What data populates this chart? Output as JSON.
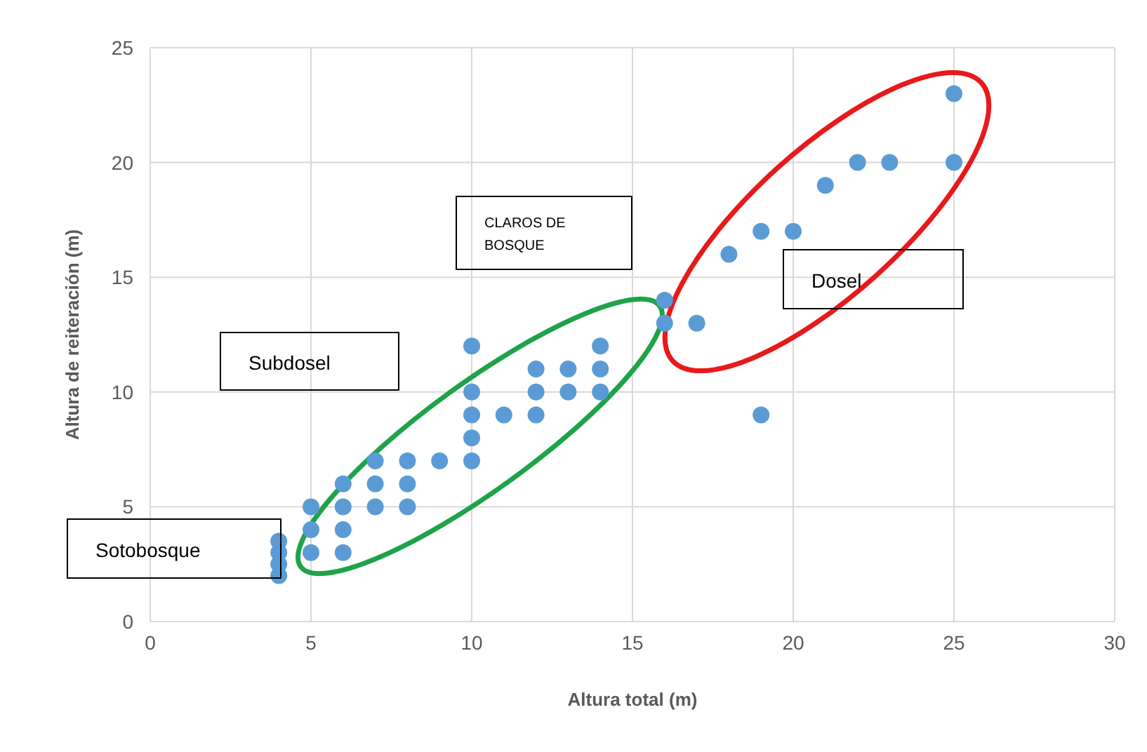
{
  "chart_data": {
    "type": "scatter",
    "xlabel": "Altura total (m)",
    "ylabel": "Altura de reiteración (m)",
    "x": [
      4,
      4,
      4,
      4,
      5,
      5,
      5,
      6,
      6,
      6,
      6,
      7,
      7,
      7,
      8,
      8,
      8,
      9,
      10,
      10,
      10,
      10,
      10,
      11,
      12,
      12,
      12,
      13,
      13,
      14,
      14,
      14,
      16,
      16,
      17,
      18,
      19,
      19,
      20,
      21,
      22,
      23,
      25,
      25
    ],
    "series": [
      {
        "color": "#5b9bd5",
        "values": [
          2,
          2.5,
          3,
          3.5,
          3,
          4,
          5,
          3,
          4,
          5,
          6,
          5,
          6,
          7,
          5,
          6,
          7,
          7,
          7,
          8,
          9,
          10,
          12,
          9,
          9,
          10,
          11,
          10,
          11,
          10,
          11,
          12,
          13,
          14,
          13,
          16,
          17,
          9,
          17,
          19,
          20,
          20,
          20,
          23
        ]
      }
    ],
    "xlim": [
      0,
      30
    ],
    "ylim": [
      0,
      25
    ],
    "xticks": [
      0,
      5,
      10,
      15,
      20,
      25,
      30
    ],
    "yticks": [
      0,
      5,
      10,
      15,
      20,
      25
    ],
    "grid": true,
    "marker": "circle",
    "annotations": [
      "CLAROS DE BOSQUE",
      "Subdosel",
      "Sotobosque",
      "Dosel"
    ]
  }
}
